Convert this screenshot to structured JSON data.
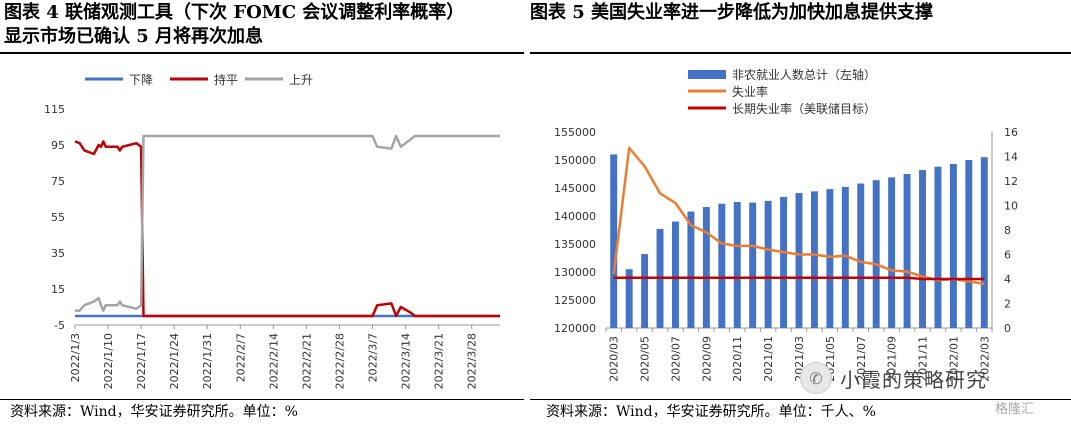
{
  "titles": {
    "fig4_line1": "图表 4  联储观测工具（下次 FOMC 会议调整利率概率）",
    "fig4_line2": "显示市场已确认 5 月将再次加息",
    "fig5": "图表 5  美国失业率进一步降低为加快加息提供支撑"
  },
  "sources": {
    "fig4": "资料来源：Wind，华安证券研究所。单位：%",
    "fig5": "资料来源：Wind，华安证券研究所。单位：千人、%"
  },
  "watermark": {
    "text": "小霞的策略研究",
    "mark": "格隆汇"
  },
  "colors": {
    "down": "#4472C4",
    "hold": "#C00000",
    "up": "#A5A5A5",
    "payroll_bar": "#4472C4",
    "unemployment": "#ED7D31",
    "longrun": "#C00000"
  },
  "chart_data": [
    {
      "type": "line",
      "legend": [
        "下降",
        "持平",
        "上升"
      ],
      "ylim": [
        -5,
        115
      ],
      "yticks": [
        "-5",
        "15",
        "35",
        "55",
        "75",
        "95",
        "115"
      ],
      "xlabels": [
        "2022/1/3",
        "2022/1/10",
        "2022/1/17",
        "2022/1/24",
        "2022/1/31",
        "2022/2/7",
        "2022/2/14",
        "2022/2/21",
        "2022/2/28",
        "2022/3/7",
        "2022/3/14",
        "2022/3/21",
        "2022/3/28"
      ],
      "series": [
        {
          "name": "下降",
          "values": [
            [
              0,
              0
            ],
            [
              90,
              0
            ]
          ]
        },
        {
          "name": "持平",
          "values": [
            [
              0,
              97
            ],
            [
              1,
              96
            ],
            [
              2,
              92
            ],
            [
              4,
              90
            ],
            [
              5,
              95
            ],
            [
              5.5,
              94
            ],
            [
              6,
              97
            ],
            [
              6.5,
              94
            ],
            [
              9,
              94
            ],
            [
              9.5,
              92
            ],
            [
              10,
              94
            ],
            [
              13,
              96
            ],
            [
              14,
              94
            ],
            [
              14.5,
              0
            ],
            [
              63,
              0
            ],
            [
              64,
              6
            ],
            [
              67,
              7
            ],
            [
              68,
              0
            ],
            [
              69,
              5
            ],
            [
              71,
              2
            ],
            [
              72,
              0
            ],
            [
              90,
              0
            ]
          ]
        },
        {
          "name": "上升",
          "values": [
            [
              0,
              3
            ],
            [
              1,
              3
            ],
            [
              2,
              6
            ],
            [
              4,
              8
            ],
            [
              5,
              10
            ],
            [
              5.5,
              6
            ],
            [
              6,
              3
            ],
            [
              6.5,
              6
            ],
            [
              9,
              6
            ],
            [
              9.5,
              8
            ],
            [
              10,
              6
            ],
            [
              13,
              4
            ],
            [
              14,
              6
            ],
            [
              14.5,
              100
            ],
            [
              63,
              100
            ],
            [
              64,
              94
            ],
            [
              67,
              93
            ],
            [
              68,
              100
            ],
            [
              69,
              94
            ],
            [
              71,
              98
            ],
            [
              72,
              100
            ],
            [
              90,
              100
            ]
          ]
        }
      ]
    },
    {
      "type": "bar",
      "legend": [
        "非农就业人数总计（左轴）",
        "失业率",
        "长期失业率（美联储目标）"
      ],
      "ylim_left": [
        120000,
        155000
      ],
      "ylim_right": [
        0,
        16
      ],
      "yticks_left": [
        "120000",
        "125000",
        "130000",
        "135000",
        "140000",
        "145000",
        "150000",
        "155000"
      ],
      "yticks_right": [
        "0",
        "2",
        "4",
        "6",
        "8",
        "10",
        "12",
        "14",
        "16"
      ],
      "xlabels": [
        "2020/03",
        "2020/05",
        "2020/07",
        "2020/09",
        "2020/11",
        "2021/01",
        "2021/03",
        "2021/05",
        "2021/07",
        "2021/09",
        "2021/11",
        "2022/01",
        "2022/03"
      ],
      "categories": [
        "2020/03",
        "2020/04",
        "2020/05",
        "2020/06",
        "2020/07",
        "2020/08",
        "2020/09",
        "2020/10",
        "2020/11",
        "2020/12",
        "2021/01",
        "2021/02",
        "2021/03",
        "2021/04",
        "2021/05",
        "2021/06",
        "2021/07",
        "2021/08",
        "2021/09",
        "2021/10",
        "2021/11",
        "2021/12",
        "2022/01",
        "2022/02",
        "2022/03"
      ],
      "series": [
        {
          "name": "非农就业人数总计（左轴）",
          "values": [
            151000,
            130500,
            133200,
            137700,
            139000,
            140800,
            141600,
            142200,
            142500,
            142400,
            142700,
            143400,
            144100,
            144400,
            144800,
            145200,
            145800,
            146400,
            146900,
            147500,
            148200,
            148800,
            149300,
            150000,
            150500
          ]
        },
        {
          "name": "失业率",
          "values": [
            4.4,
            14.7,
            13.2,
            11.0,
            10.2,
            8.4,
            7.8,
            6.9,
            6.7,
            6.7,
            6.4,
            6.2,
            6.0,
            6.0,
            5.8,
            5.9,
            5.4,
            5.2,
            4.7,
            4.6,
            4.2,
            3.9,
            4.0,
            3.8,
            3.6
          ]
        },
        {
          "name": "长期失业率（美联储目标）",
          "values": [
            4.1,
            4.1,
            4.1,
            4.1,
            4.1,
            4.1,
            4.1,
            4.1,
            4.1,
            4.1,
            4.1,
            4.1,
            4.1,
            4.1,
            4.1,
            4.1,
            4.1,
            4.1,
            4.1,
            4.1,
            4.0,
            4.0,
            4.0,
            4.0,
            4.0
          ]
        }
      ]
    }
  ]
}
